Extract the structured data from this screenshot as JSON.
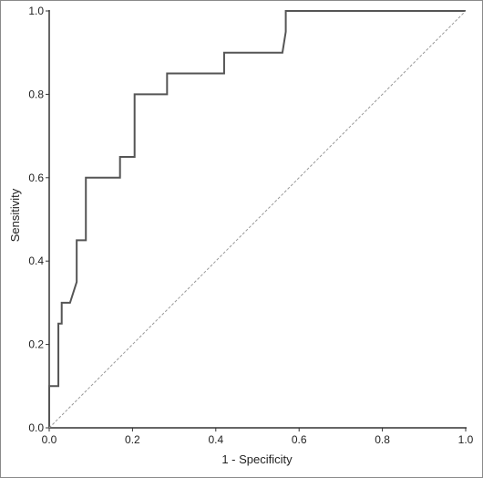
{
  "chart_data": {
    "type": "line",
    "xlabel": "1 - Specificity",
    "ylabel": "Sensitivity",
    "xlim": [
      0.0,
      1.0
    ],
    "ylim": [
      0.0,
      1.0
    ],
    "x_ticks": [
      "0.0",
      "0.2",
      "0.4",
      "0.6",
      "0.8",
      "1.0"
    ],
    "y_ticks": [
      "0.0",
      "0.2",
      "0.4",
      "0.6",
      "0.8",
      "1.0"
    ],
    "grid": false,
    "colors": {
      "curve": "#555555",
      "reference": "#999999",
      "axis": "#333333"
    },
    "series": [
      {
        "style": "solid",
        "x": [
          0.0,
          0.0,
          0.022,
          0.022,
          0.03,
          0.03,
          0.05,
          0.066,
          0.066,
          0.088,
          0.088,
          0.17,
          0.17,
          0.205,
          0.205,
          0.283,
          0.283,
          0.42,
          0.42,
          0.56,
          0.568,
          0.568,
          1.0
        ],
        "y": [
          0.0,
          0.1,
          0.1,
          0.25,
          0.25,
          0.3,
          0.3,
          0.35,
          0.45,
          0.45,
          0.6,
          0.6,
          0.65,
          0.65,
          0.8,
          0.8,
          0.85,
          0.85,
          0.9,
          0.9,
          0.95,
          1.0,
          1.0
        ]
      },
      {
        "style": "dashed",
        "x": [
          0.0,
          1.0
        ],
        "y": [
          0.0,
          1.0
        ]
      }
    ]
  }
}
